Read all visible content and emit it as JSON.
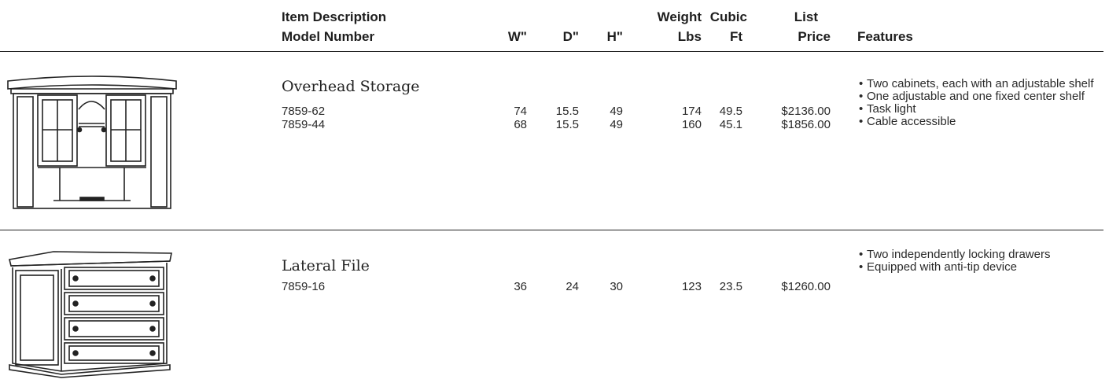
{
  "header": {
    "item_description": "Item Description",
    "model_number": "Model Number",
    "w": "W\"",
    "d": "D\"",
    "h": "H\"",
    "weight": "Weight",
    "lbs": "Lbs",
    "cubic": "Cubic",
    "ft": "Ft",
    "list": "List",
    "price": "Price",
    "features": "Features"
  },
  "products": [
    {
      "title": "Overhead Storage",
      "illustration": "overhead-storage-hutch-illustration",
      "rows": [
        {
          "model": "7859-62",
          "w": "74",
          "d": "15.5",
          "h": "49",
          "lbs": "174",
          "ft": "49.5",
          "price": "$2136.00"
        },
        {
          "model": "7859-44",
          "w": "68",
          "d": "15.5",
          "h": "49",
          "lbs": "160",
          "ft": "45.1",
          "price": "$1856.00"
        }
      ],
      "features": [
        "Two cabinets, each with an adjustable shelf",
        "One adjustable and one fixed center shelf",
        "Task light",
        "Cable accessible"
      ]
    },
    {
      "title": "Lateral File",
      "illustration": "lateral-file-cabinet-illustration",
      "rows": [
        {
          "model": "7859-16",
          "w": "36",
          "d": "24",
          "h": "30",
          "lbs": "123",
          "ft": "23.5",
          "price": "$1260.00"
        }
      ],
      "features": [
        "Two independently locking drawers",
        "Equipped with anti-tip device"
      ]
    }
  ]
}
